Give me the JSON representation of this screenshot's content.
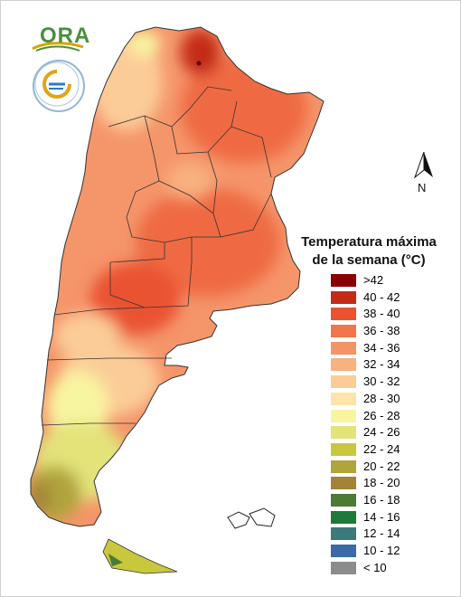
{
  "legend": {
    "title_line1": "Temperatura máxima",
    "title_line2": "de la semana (°C)",
    "classes": [
      {
        "label": ">42",
        "color": "#8b0000"
      },
      {
        "label": "40 - 42",
        "color": "#c42b17"
      },
      {
        "label": "38 - 40",
        "color": "#ea5230"
      },
      {
        "label": "36 - 38",
        "color": "#f2764d"
      },
      {
        "label": "34 - 36",
        "color": "#f59266"
      },
      {
        "label": "32 - 34",
        "color": "#f8b180"
      },
      {
        "label": "30 - 32",
        "color": "#fbcc98"
      },
      {
        "label": "28 - 30",
        "color": "#fde4aa"
      },
      {
        "label": "26 - 28",
        "color": "#f8f5a0"
      },
      {
        "label": "24 - 26",
        "color": "#e3e37a"
      },
      {
        "label": "22 - 24",
        "color": "#c9c83c"
      },
      {
        "label": "20 - 22",
        "color": "#b0a43a"
      },
      {
        "label": "18 - 20",
        "color": "#a28338"
      },
      {
        "label": "16 - 18",
        "color": "#4d7a34"
      },
      {
        "label": "14 - 16",
        "color": "#1e7a3a"
      },
      {
        "label": "12 - 14",
        "color": "#3b7a78"
      },
      {
        "label": "10 - 12",
        "color": "#3a6aa8"
      },
      {
        "label": "< 10",
        "color": "#8c8c8c"
      }
    ]
  },
  "compass": {
    "label": "N"
  },
  "logo": {
    "text": "ORA"
  }
}
